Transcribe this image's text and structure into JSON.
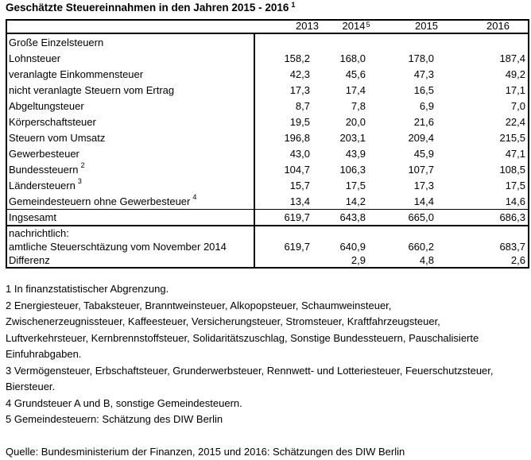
{
  "title": {
    "text": "Geschätzte Steuereinnahmen in den Jahren 2015 - 2016",
    "sup": "1"
  },
  "table": {
    "columns": [
      {
        "label": "2013",
        "sup": ""
      },
      {
        "label": "2014",
        "sup": "5"
      },
      {
        "label": "2015",
        "sup": ""
      },
      {
        "label": "2016",
        "sup": ""
      }
    ],
    "rows": [
      {
        "label": "Große Einzelsteuern",
        "sup": "",
        "values": [
          "",
          "",
          "",
          ""
        ]
      },
      {
        "label": "Lohnsteuer",
        "sup": "",
        "values": [
          "158,2",
          "168,0",
          "178,0",
          "187,4"
        ]
      },
      {
        "label": "veranlagte Einkommensteuer",
        "sup": "",
        "values": [
          "42,3",
          "45,6",
          "47,3",
          "49,2"
        ]
      },
      {
        "label": "nicht veranlagte Steuern vom Ertrag",
        "sup": "",
        "values": [
          "17,3",
          "17,4",
          "16,5",
          "17,1"
        ]
      },
      {
        "label": "Abgeltungsteuer",
        "sup": "",
        "values": [
          "8,7",
          "7,8",
          "6,9",
          "7,0"
        ]
      },
      {
        "label": "Körperschaftsteuer",
        "sup": "",
        "values": [
          "19,5",
          "20,0",
          "21,6",
          "22,4"
        ]
      },
      {
        "label": "Steuern vom Umsatz",
        "sup": "",
        "values": [
          "196,8",
          "203,1",
          "209,4",
          "215,5"
        ]
      },
      {
        "label": "Gewerbesteuer",
        "sup": "",
        "values": [
          "43,0",
          "43,9",
          "45,9",
          "47,1"
        ]
      },
      {
        "label": "Bundessteuern",
        "sup": "2",
        "values": [
          "104,7",
          "106,3",
          "107,7",
          "108,5"
        ]
      },
      {
        "label": "Ländersteuern",
        "sup": "3",
        "values": [
          "15,7",
          "17,5",
          "17,3",
          "17,5"
        ]
      },
      {
        "label": "Gemeindesteuern ohne Gewerbesteuer",
        "sup": "4",
        "values": [
          "13,4",
          "14,2",
          "14,4",
          "14,6"
        ]
      },
      {
        "label": "Ingsesamt",
        "sup": "",
        "values": [
          "619,7",
          "643,8",
          "665,0",
          "686,3"
        ]
      },
      {
        "label": "nachrichtlich:",
        "sup": "",
        "values": [
          "",
          "",
          "",
          ""
        ]
      },
      {
        "label": "amtliche Steuerschtäzung vom November 2014",
        "sup": "",
        "values": [
          "619,7",
          "640,9",
          "660,2",
          "683,7"
        ]
      },
      {
        "label": "Differenz",
        "sup": "",
        "values": [
          "",
          "2,9",
          "4,8",
          "2,6"
        ]
      }
    ]
  },
  "footnotes": [
    {
      "lines": [
        "1 In finanzstatistischer Abgrenzung."
      ]
    },
    {
      "lines": [
        "2 Energiesteuer, Tabaksteuer, Branntweinsteuer, Alkopopsteuer, Schaumweinsteuer,",
        "Zwischenerzeugnissteuer, Kaffeesteuer, Versicherungsteuer, Stromsteuer, Kraftfahrzeugsteuer,",
        "Luftverkehrsteuer, Kernbrennstoffsteuer, Solidaritätszuschlag, Sonstige Bundessteuern, Pauschalisierte",
        "Einfuhrabgaben."
      ]
    },
    {
      "lines": [
        "3 Vermögensteuer, Erbschaftsteuer, Grunderwerbsteuer, Rennwett- und Lotteriesteuer, Feuerschutzsteuer,",
        "Biersteuer."
      ]
    },
    {
      "lines": [
        "4 Grundsteuer A und B, sonstige Gemeindesteuern."
      ]
    },
    {
      "lines": [
        "5 Gemeindesteuern: Schätzung des DIW Berlin"
      ]
    }
  ],
  "source": "Quelle: Bundesministerium der Finanzen, 2015 und 2016: Schätzungen des DIW Berlin",
  "colors": {
    "text": "#000000",
    "background": "#ffffff",
    "border": "#000000"
  }
}
